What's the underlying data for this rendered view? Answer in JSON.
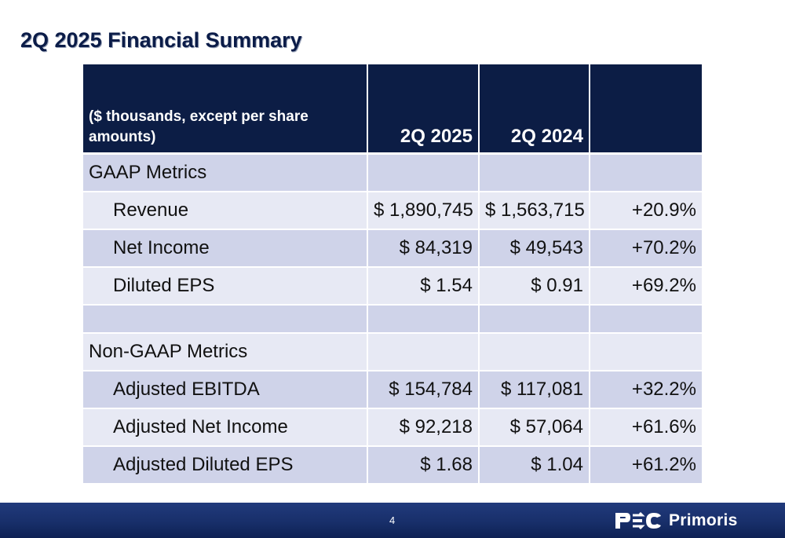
{
  "title": "2Q 2025 Financial Summary",
  "table": {
    "header": {
      "units": "($ thousands, except per share amounts)",
      "col1": "2Q 2025",
      "col2": "2Q 2024",
      "col3": ""
    },
    "rows": [
      {
        "label": "GAAP Metrics",
        "v1": "",
        "v2": "",
        "v3": "",
        "indent": false,
        "shade": "dark"
      },
      {
        "label": "Revenue",
        "v1": "$ 1,890,745",
        "v2": "$ 1,563,715",
        "v3": "+20.9%",
        "indent": true,
        "shade": "light"
      },
      {
        "label": "Net Income",
        "v1": "$ 84,319",
        "v2": "$ 49,543",
        "v3": "+70.2%",
        "indent": true,
        "shade": "dark"
      },
      {
        "label": "Diluted EPS",
        "v1": "$ 1.54",
        "v2": "$ 0.91",
        "v3": "+69.2%",
        "indent": true,
        "shade": "light"
      },
      {
        "label": "",
        "v1": "",
        "v2": "",
        "v3": "",
        "indent": false,
        "shade": "dark",
        "spacer": true
      },
      {
        "label": "Non-GAAP Metrics",
        "v1": "",
        "v2": "",
        "v3": "",
        "indent": false,
        "shade": "light"
      },
      {
        "label": "Adjusted EBITDA",
        "v1": "$ 154,784",
        "v2": "$ 117,081",
        "v3": "+32.2%",
        "indent": true,
        "shade": "dark"
      },
      {
        "label": "Adjusted Net Income",
        "v1": "$ 92,218",
        "v2": "$ 57,064",
        "v3": "+61.6%",
        "indent": true,
        "shade": "light"
      },
      {
        "label": "Adjusted Diluted EPS",
        "v1": "$ 1.68",
        "v2": "$ 1.04",
        "v3": "+61.2%",
        "indent": true,
        "shade": "dark"
      }
    ]
  },
  "footer": {
    "page_number": "4",
    "logo_text": "Primoris",
    "logo_mark": "PSC"
  },
  "colors": {
    "header_bg": "#0c1d45",
    "row_dark": "#cfd3e9",
    "row_light": "#e7e9f4",
    "footer_bg": "#182f6a",
    "title": "#0b1c48"
  }
}
